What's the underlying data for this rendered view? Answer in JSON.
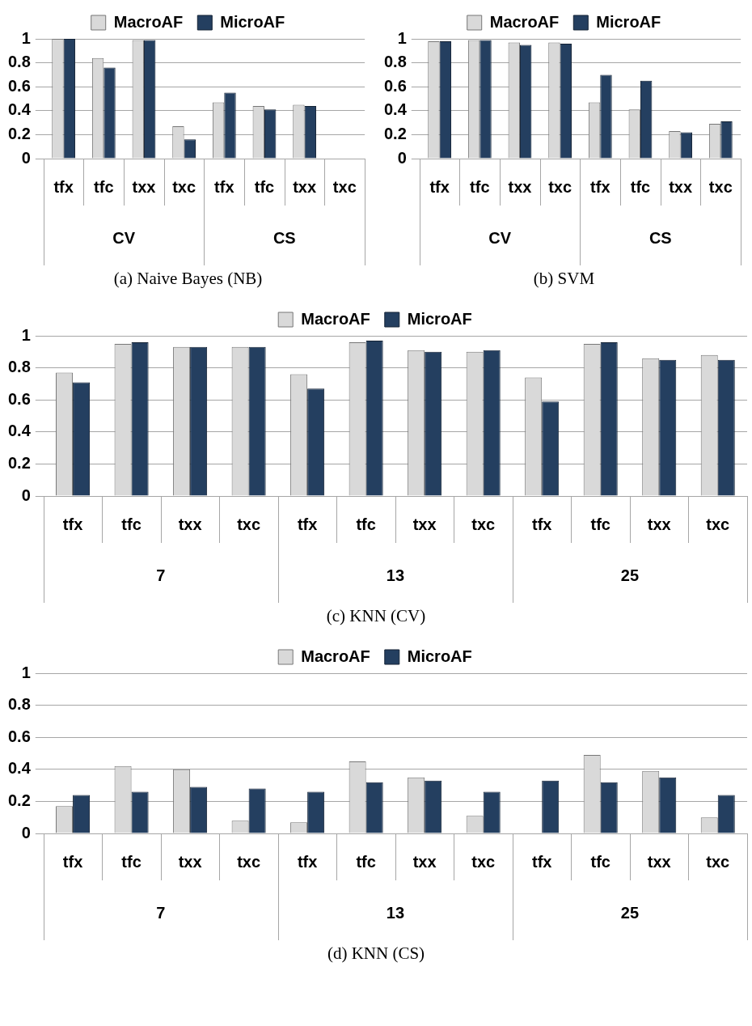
{
  "chart_data": [
    {
      "type": "bar",
      "title": "(a) Naive Bayes (NB)",
      "categories": [
        "tfx",
        "tfc",
        "txx",
        "txc",
        "tfx",
        "tfc",
        "txx",
        "txc"
      ],
      "annotations": [
        "CV",
        "CS"
      ],
      "ylim": [
        0,
        1
      ],
      "yticks": [
        0,
        0.2,
        0.4,
        0.6,
        0.8,
        1
      ],
      "grid": "y",
      "legend": "top",
      "series": [
        {
          "name": "MacroAF",
          "color": "#d9d9d9",
          "values": [
            1.0,
            0.84,
            0.99,
            0.27,
            0.47,
            0.44,
            0.45,
            null
          ]
        },
        {
          "name": "MicroAF",
          "color": "#243f60",
          "values": [
            1.0,
            0.76,
            0.99,
            0.16,
            0.55,
            0.41,
            0.44,
            null
          ]
        }
      ]
    },
    {
      "type": "bar",
      "title": "(b) SVM",
      "categories": [
        "tfx",
        "tfc",
        "txx",
        "txc",
        "tfx",
        "tfc",
        "txx",
        "txc"
      ],
      "annotations": [
        "CV",
        "CS"
      ],
      "ylim": [
        0,
        1
      ],
      "yticks": [
        0,
        0.2,
        0.4,
        0.6,
        0.8,
        1
      ],
      "grid": "y",
      "legend": "top",
      "series": [
        {
          "name": "MacroAF",
          "color": "#d9d9d9",
          "values": [
            0.98,
            0.99,
            0.97,
            0.97,
            0.47,
            0.41,
            0.23,
            0.29
          ]
        },
        {
          "name": "MicroAF",
          "color": "#243f60",
          "values": [
            0.98,
            0.99,
            0.95,
            0.96,
            0.7,
            0.65,
            0.22,
            0.31
          ]
        }
      ]
    },
    {
      "type": "bar",
      "title": "(c) KNN (CV)",
      "categories": [
        "tfx",
        "tfc",
        "txx",
        "txc",
        "tfx",
        "tfc",
        "txx",
        "txc",
        "tfx",
        "tfc",
        "txx",
        "txc"
      ],
      "annotations": [
        "7",
        "13",
        "25"
      ],
      "ylim": [
        0,
        1
      ],
      "yticks": [
        0,
        0.2,
        0.4,
        0.6,
        0.8,
        1
      ],
      "grid": "y",
      "legend": "top",
      "series": [
        {
          "name": "MacroAF",
          "color": "#d9d9d9",
          "values": [
            0.77,
            0.95,
            0.93,
            0.93,
            0.76,
            0.96,
            0.91,
            0.9,
            0.74,
            0.95,
            0.86,
            0.88
          ]
        },
        {
          "name": "MicroAF",
          "color": "#243f60",
          "values": [
            0.71,
            0.96,
            0.93,
            0.93,
            0.67,
            0.97,
            0.9,
            0.91,
            0.59,
            0.96,
            0.85,
            0.85
          ]
        }
      ]
    },
    {
      "type": "bar",
      "title": "(d) KNN (CS)",
      "categories": [
        "tfx",
        "tfc",
        "txx",
        "txc",
        "tfx",
        "tfc",
        "txx",
        "txc",
        "tfx",
        "tfc",
        "txx",
        "txc"
      ],
      "annotations": [
        "7",
        "13",
        "25"
      ],
      "ylim": [
        0,
        1
      ],
      "yticks": [
        0,
        0.2,
        0.4,
        0.6,
        0.8,
        1
      ],
      "grid": "y",
      "legend": "top",
      "series": [
        {
          "name": "MacroAF",
          "color": "#d9d9d9",
          "values": [
            0.17,
            0.42,
            0.4,
            0.08,
            0.07,
            0.45,
            0.35,
            0.11,
            0.003,
            0.49,
            0.39,
            0.1
          ]
        },
        {
          "name": "MicroAF",
          "color": "#243f60",
          "values": [
            0.24,
            0.26,
            0.29,
            0.28,
            0.26,
            0.32,
            0.33,
            0.26,
            0.33,
            0.32,
            0.35,
            0.24
          ]
        }
      ]
    }
  ]
}
